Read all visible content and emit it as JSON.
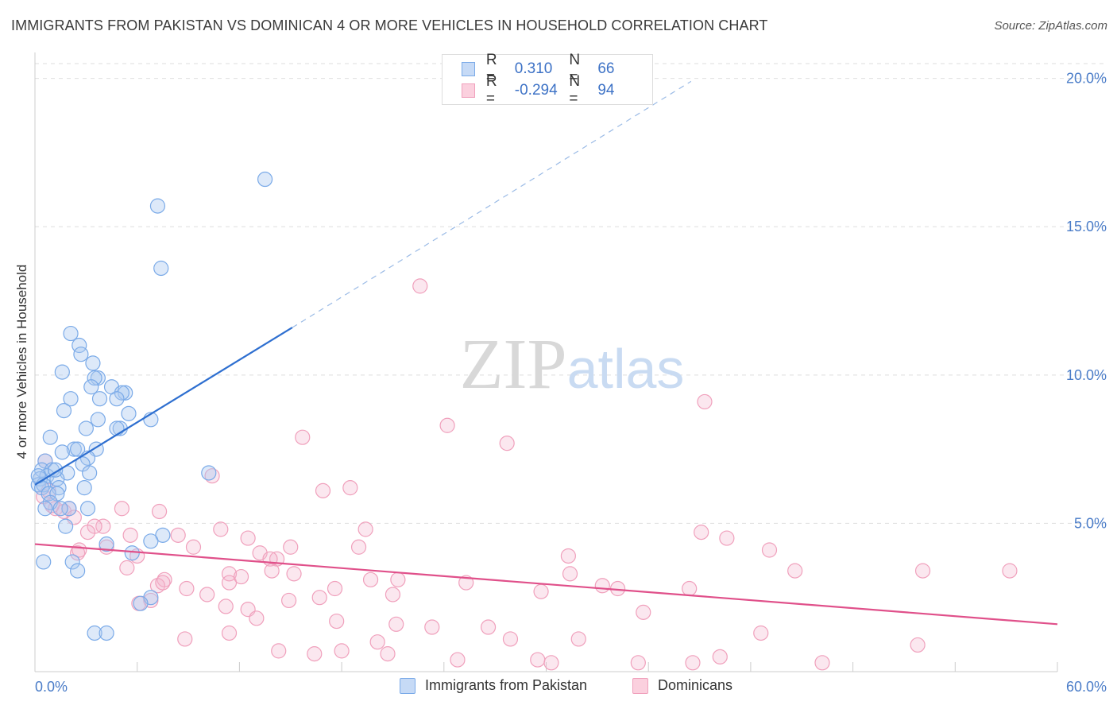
{
  "header": {
    "title": "IMMIGRANTS FROM PAKISTAN VS DOMINICAN 4 OR MORE VEHICLES IN HOUSEHOLD CORRELATION CHART",
    "source": "Source: ZipAtlas.com"
  },
  "watermark": {
    "part1": "ZIP",
    "part2": "atlas"
  },
  "legend": {
    "series": [
      {
        "r_label": "R =",
        "r_value": "0.310",
        "n_label": "N =",
        "n_value": "66",
        "color": "#7aaae8"
      },
      {
        "r_label": "R =",
        "r_value": "-0.294",
        "n_label": "N =",
        "n_value": "94",
        "color": "#f0a0bc"
      }
    ]
  },
  "bottom_legend": {
    "pakistan": "Immigrants from Pakistan",
    "dominicans": "Dominicans"
  },
  "chart_data": {
    "type": "scatter",
    "title": "IMMIGRANTS FROM PAKISTAN VS DOMINICAN 4 OR MORE VEHICLES IN HOUSEHOLD CORRELATION CHART",
    "xlabel": "",
    "ylabel": "4 or more Vehicles in Household",
    "xlim": [
      0,
      60
    ],
    "ylim": [
      0,
      20.5
    ],
    "x_tick_labels": [
      "0.0%",
      "60.0%"
    ],
    "y_ticks": [
      5,
      10,
      15,
      20
    ],
    "y_tick_labels": [
      "5.0%",
      "10.0%",
      "15.0%",
      "20.0%"
    ],
    "grid": "horizontal dashed",
    "series": [
      {
        "name": "Immigrants from Pakistan",
        "color": "#7aaae8",
        "line_color": "#2e6fd0",
        "trend": {
          "x0": 0,
          "y0": 6.3,
          "x1": 15.1,
          "y1": 11.6,
          "x_ext": 38.5,
          "y_ext": 19.9
        },
        "points": [
          [
            13.5,
            16.6
          ],
          [
            7.2,
            15.7
          ],
          [
            7.4,
            13.6
          ],
          [
            2.1,
            11.4
          ],
          [
            2.6,
            11.0
          ],
          [
            2.7,
            10.7
          ],
          [
            3.4,
            10.4
          ],
          [
            1.6,
            10.1
          ],
          [
            3.7,
            9.9
          ],
          [
            3.5,
            9.9
          ],
          [
            4.5,
            9.6
          ],
          [
            3.3,
            9.6
          ],
          [
            5.3,
            9.4
          ],
          [
            5.1,
            9.4
          ],
          [
            3.8,
            9.2
          ],
          [
            2.1,
            9.2
          ],
          [
            4.8,
            9.2
          ],
          [
            1.7,
            8.8
          ],
          [
            5.5,
            8.7
          ],
          [
            6.8,
            8.5
          ],
          [
            3.7,
            8.5
          ],
          [
            5.0,
            8.2
          ],
          [
            3.0,
            8.2
          ],
          [
            4.8,
            8.2
          ],
          [
            0.9,
            7.9
          ],
          [
            2.3,
            7.5
          ],
          [
            2.5,
            7.5
          ],
          [
            3.6,
            7.5
          ],
          [
            1.6,
            7.4
          ],
          [
            3.1,
            7.2
          ],
          [
            0.6,
            7.1
          ],
          [
            2.8,
            7.0
          ],
          [
            0.4,
            6.8
          ],
          [
            1.0,
            6.8
          ],
          [
            1.9,
            6.7
          ],
          [
            3.2,
            6.7
          ],
          [
            10.2,
            6.7
          ],
          [
            0.7,
            6.6
          ],
          [
            0.3,
            6.5
          ],
          [
            1.3,
            6.5
          ],
          [
            0.2,
            6.3
          ],
          [
            0.5,
            6.3
          ],
          [
            0.4,
            6.2
          ],
          [
            1.4,
            6.2
          ],
          [
            2.9,
            6.2
          ],
          [
            0.8,
            6.0
          ],
          [
            1.3,
            6.0
          ],
          [
            0.9,
            5.7
          ],
          [
            0.6,
            5.5
          ],
          [
            2.0,
            5.5
          ],
          [
            3.1,
            5.5
          ],
          [
            1.5,
            5.5
          ],
          [
            1.8,
            4.9
          ],
          [
            7.5,
            4.6
          ],
          [
            4.2,
            4.3
          ],
          [
            6.8,
            4.4
          ],
          [
            5.7,
            4.0
          ],
          [
            0.5,
            3.7
          ],
          [
            2.2,
            3.7
          ],
          [
            2.5,
            3.4
          ],
          [
            6.8,
            2.5
          ],
          [
            6.2,
            2.3
          ],
          [
            3.5,
            1.3
          ],
          [
            4.2,
            1.3
          ],
          [
            0.2,
            6.6
          ],
          [
            1.2,
            6.8
          ]
        ]
      },
      {
        "name": "Dominicans",
        "color": "#f0a0bc",
        "line_color": "#e0508a",
        "trend": {
          "x0": 0,
          "y0": 4.3,
          "x1": 60,
          "y1": 1.6
        },
        "points": [
          [
            22.6,
            13.0
          ],
          [
            39.3,
            9.1
          ],
          [
            24.2,
            8.3
          ],
          [
            15.7,
            7.9
          ],
          [
            27.7,
            7.7
          ],
          [
            0.6,
            7.1
          ],
          [
            10.4,
            6.6
          ],
          [
            18.5,
            6.2
          ],
          [
            16.9,
            6.1
          ],
          [
            0.5,
            5.9
          ],
          [
            5.1,
            5.5
          ],
          [
            7.3,
            5.4
          ],
          [
            1.2,
            5.5
          ],
          [
            1.7,
            5.4
          ],
          [
            2.0,
            5.5
          ],
          [
            2.3,
            5.2
          ],
          [
            4.0,
            4.9
          ],
          [
            3.5,
            4.9
          ],
          [
            10.9,
            4.8
          ],
          [
            19.4,
            4.8
          ],
          [
            3.1,
            4.7
          ],
          [
            5.6,
            4.6
          ],
          [
            8.4,
            4.6
          ],
          [
            12.5,
            4.5
          ],
          [
            39.1,
            4.7
          ],
          [
            40.6,
            4.5
          ],
          [
            15.0,
            4.2
          ],
          [
            9.3,
            4.2
          ],
          [
            4.2,
            4.2
          ],
          [
            19.0,
            4.2
          ],
          [
            13.2,
            4.0
          ],
          [
            2.5,
            4.0
          ],
          [
            14.2,
            3.8
          ],
          [
            31.3,
            3.9
          ],
          [
            13.8,
            3.8
          ],
          [
            43.1,
            4.1
          ],
          [
            11.4,
            3.3
          ],
          [
            13.9,
            3.4
          ],
          [
            19.7,
            3.1
          ],
          [
            21.3,
            3.1
          ],
          [
            31.4,
            3.3
          ],
          [
            44.6,
            3.4
          ],
          [
            7.6,
            3.1
          ],
          [
            25.3,
            3.0
          ],
          [
            34.2,
            2.8
          ],
          [
            11.4,
            3.0
          ],
          [
            12.1,
            3.2
          ],
          [
            15.2,
            3.3
          ],
          [
            7.2,
            2.9
          ],
          [
            8.9,
            2.8
          ],
          [
            17.6,
            2.8
          ],
          [
            10.1,
            2.6
          ],
          [
            16.7,
            2.5
          ],
          [
            6.8,
            2.4
          ],
          [
            14.9,
            2.4
          ],
          [
            21.0,
            2.6
          ],
          [
            29.7,
            2.7
          ],
          [
            33.3,
            2.9
          ],
          [
            38.4,
            2.8
          ],
          [
            35.7,
            2.0
          ],
          [
            12.5,
            2.1
          ],
          [
            13.0,
            1.8
          ],
          [
            17.7,
            1.7
          ],
          [
            21.2,
            1.6
          ],
          [
            23.3,
            1.5
          ],
          [
            26.6,
            1.5
          ],
          [
            42.6,
            1.3
          ],
          [
            20.1,
            1.0
          ],
          [
            27.9,
            1.1
          ],
          [
            31.9,
            1.1
          ],
          [
            8.8,
            1.1
          ],
          [
            11.4,
            1.3
          ],
          [
            14.3,
            0.7
          ],
          [
            16.4,
            0.6
          ],
          [
            18.0,
            0.7
          ],
          [
            20.7,
            0.6
          ],
          [
            24.8,
            0.4
          ],
          [
            29.5,
            0.4
          ],
          [
            30.3,
            0.3
          ],
          [
            35.4,
            0.3
          ],
          [
            38.6,
            0.3
          ],
          [
            40.2,
            0.5
          ],
          [
            46.2,
            0.3
          ],
          [
            51.8,
            0.9
          ],
          [
            52.1,
            3.4
          ],
          [
            57.2,
            3.4
          ],
          [
            1.0,
            5.6
          ],
          [
            0.8,
            6.1
          ],
          [
            2.6,
            4.1
          ],
          [
            6.0,
            3.9
          ],
          [
            7.5,
            3.0
          ],
          [
            5.4,
            3.5
          ],
          [
            11.2,
            2.2
          ],
          [
            6.1,
            2.3
          ]
        ]
      }
    ]
  }
}
